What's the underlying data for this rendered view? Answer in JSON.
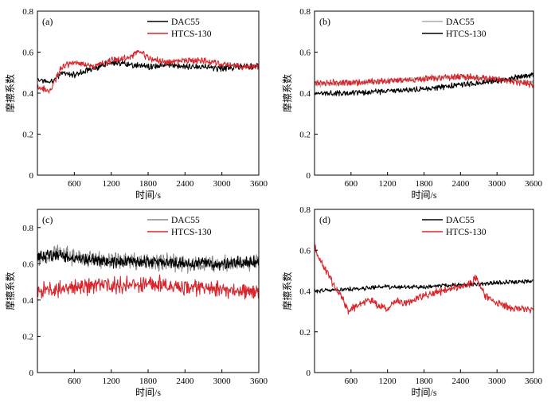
{
  "figure": {
    "colors": {
      "axis": "#000000"
    }
  },
  "chart_data": [
    {
      "panel": "(a)",
      "type": "line",
      "xlabel": "时间/s",
      "ylabel": "摩擦系数",
      "xlim": [
        0,
        3600
      ],
      "ylim": [
        0,
        0.8
      ],
      "xticks": [
        "600",
        "1200",
        "1800",
        "2400",
        "3000",
        "3600"
      ],
      "yticks": [
        "0",
        "0.2",
        "0.4",
        "0.6",
        "0.8"
      ],
      "legend_position": "top-right",
      "series": [
        {
          "name": "DAC55",
          "color": "#000000",
          "noise": 0.012,
          "x": [
            0,
            200,
            400,
            600,
            900,
            1200,
            1500,
            1800,
            2100,
            2400,
            2700,
            3000,
            3300,
            3600
          ],
          "y": [
            0.47,
            0.45,
            0.5,
            0.49,
            0.52,
            0.55,
            0.54,
            0.53,
            0.54,
            0.53,
            0.53,
            0.52,
            0.53,
            0.53
          ]
        },
        {
          "name": "HTCS-130",
          "color": "#d9262c",
          "noise": 0.012,
          "x": [
            0,
            200,
            400,
            600,
            900,
            1200,
            1500,
            1650,
            1800,
            2100,
            2400,
            2700,
            3000,
            3300,
            3600
          ],
          "y": [
            0.43,
            0.41,
            0.53,
            0.55,
            0.53,
            0.56,
            0.57,
            0.61,
            0.57,
            0.55,
            0.56,
            0.56,
            0.54,
            0.53,
            0.53
          ]
        }
      ]
    },
    {
      "panel": "(b)",
      "type": "line",
      "xlabel": "时间/s",
      "ylabel": "摩擦系数",
      "xlim": [
        0,
        3600
      ],
      "ylim": [
        0,
        0.8
      ],
      "xticks": [
        "600",
        "1200",
        "1800",
        "2400",
        "3000",
        "3600"
      ],
      "yticks": [
        "0",
        "0.2",
        "0.4",
        "0.6",
        "0.8"
      ],
      "legend_position": "top-right",
      "series": [
        {
          "name": "DAC55",
          "color": "#aaaaaa",
          "noise": 0.01,
          "x": [
            0,
            600,
            1200,
            1800,
            2400,
            3000,
            3600
          ],
          "y": [
            0.44,
            0.45,
            0.46,
            0.47,
            0.48,
            0.47,
            0.45
          ]
        },
        {
          "name": "HTCS-130",
          "color": "#000000",
          "noise": 0.01,
          "x": [
            0,
            600,
            1200,
            1800,
            2400,
            3000,
            3600
          ],
          "y": [
            0.4,
            0.4,
            0.41,
            0.42,
            0.44,
            0.46,
            0.49
          ]
        },
        {
          "name": "",
          "color": "#d9262c",
          "noise": 0.012,
          "x": [
            0,
            600,
            1200,
            1800,
            2400,
            3000,
            3600
          ],
          "y": [
            0.45,
            0.45,
            0.46,
            0.47,
            0.48,
            0.47,
            0.44
          ]
        }
      ]
    },
    {
      "panel": "(c)",
      "type": "line",
      "xlabel": "时间/s",
      "ylabel": "摩擦系数",
      "xlim": [
        0,
        3600
      ],
      "ylim": [
        0,
        0.9
      ],
      "xticks": [
        "600",
        "1200",
        "1800",
        "2400",
        "3000",
        "3600"
      ],
      "yticks": [
        "0",
        "0.2",
        "0.4",
        "0.6",
        "0.8"
      ],
      "legend_position": "top-right",
      "series": [
        {
          "name": "DAC55",
          "color": "#8a8a8a",
          "noise": 0.035,
          "x": [
            0,
            300,
            600,
            1200,
            1800,
            2400,
            3000,
            3600
          ],
          "y": [
            0.63,
            0.66,
            0.64,
            0.62,
            0.61,
            0.6,
            0.6,
            0.61
          ]
        },
        {
          "name": "",
          "color": "#000000",
          "noise": 0.025,
          "x": [
            0,
            300,
            600,
            1200,
            1800,
            2400,
            3000,
            3600
          ],
          "y": [
            0.64,
            0.65,
            0.63,
            0.61,
            0.61,
            0.6,
            0.6,
            0.61
          ]
        },
        {
          "name": "HTCS-130",
          "color": "#d9262c",
          "noise": 0.035,
          "x": [
            0,
            300,
            600,
            1200,
            1800,
            2400,
            3000,
            3600
          ],
          "y": [
            0.45,
            0.46,
            0.47,
            0.48,
            0.49,
            0.47,
            0.46,
            0.44
          ]
        }
      ]
    },
    {
      "panel": "(d)",
      "type": "line",
      "xlabel": "时间/s",
      "ylabel": "摩擦系数",
      "xlim": [
        0,
        3600
      ],
      "ylim": [
        0,
        0.8
      ],
      "xticks": [
        "600",
        "1200",
        "1800",
        "2400",
        "3000",
        "3600"
      ],
      "yticks": [
        "0",
        "0.2",
        "0.4",
        "0.6",
        "0.8"
      ],
      "legend_position": "top-right",
      "series": [
        {
          "name": "DAC55",
          "color": "#000000",
          "noise": 0.008,
          "x": [
            0,
            600,
            1200,
            1800,
            2400,
            3000,
            3600
          ],
          "y": [
            0.4,
            0.41,
            0.42,
            0.42,
            0.43,
            0.44,
            0.45
          ]
        },
        {
          "name": "HTCS-130",
          "color": "#d9262c",
          "noise": 0.014,
          "x": [
            0,
            50,
            150,
            300,
            450,
            550,
            700,
            900,
            1050,
            1200,
            1300,
            1500,
            1800,
            2100,
            2400,
            2600,
            2650,
            2800,
            3000,
            3200,
            3400,
            3600
          ],
          "y": [
            0.62,
            0.58,
            0.52,
            0.44,
            0.37,
            0.3,
            0.33,
            0.36,
            0.33,
            0.31,
            0.35,
            0.34,
            0.38,
            0.4,
            0.42,
            0.44,
            0.47,
            0.38,
            0.34,
            0.32,
            0.31,
            0.31
          ]
        }
      ]
    }
  ]
}
